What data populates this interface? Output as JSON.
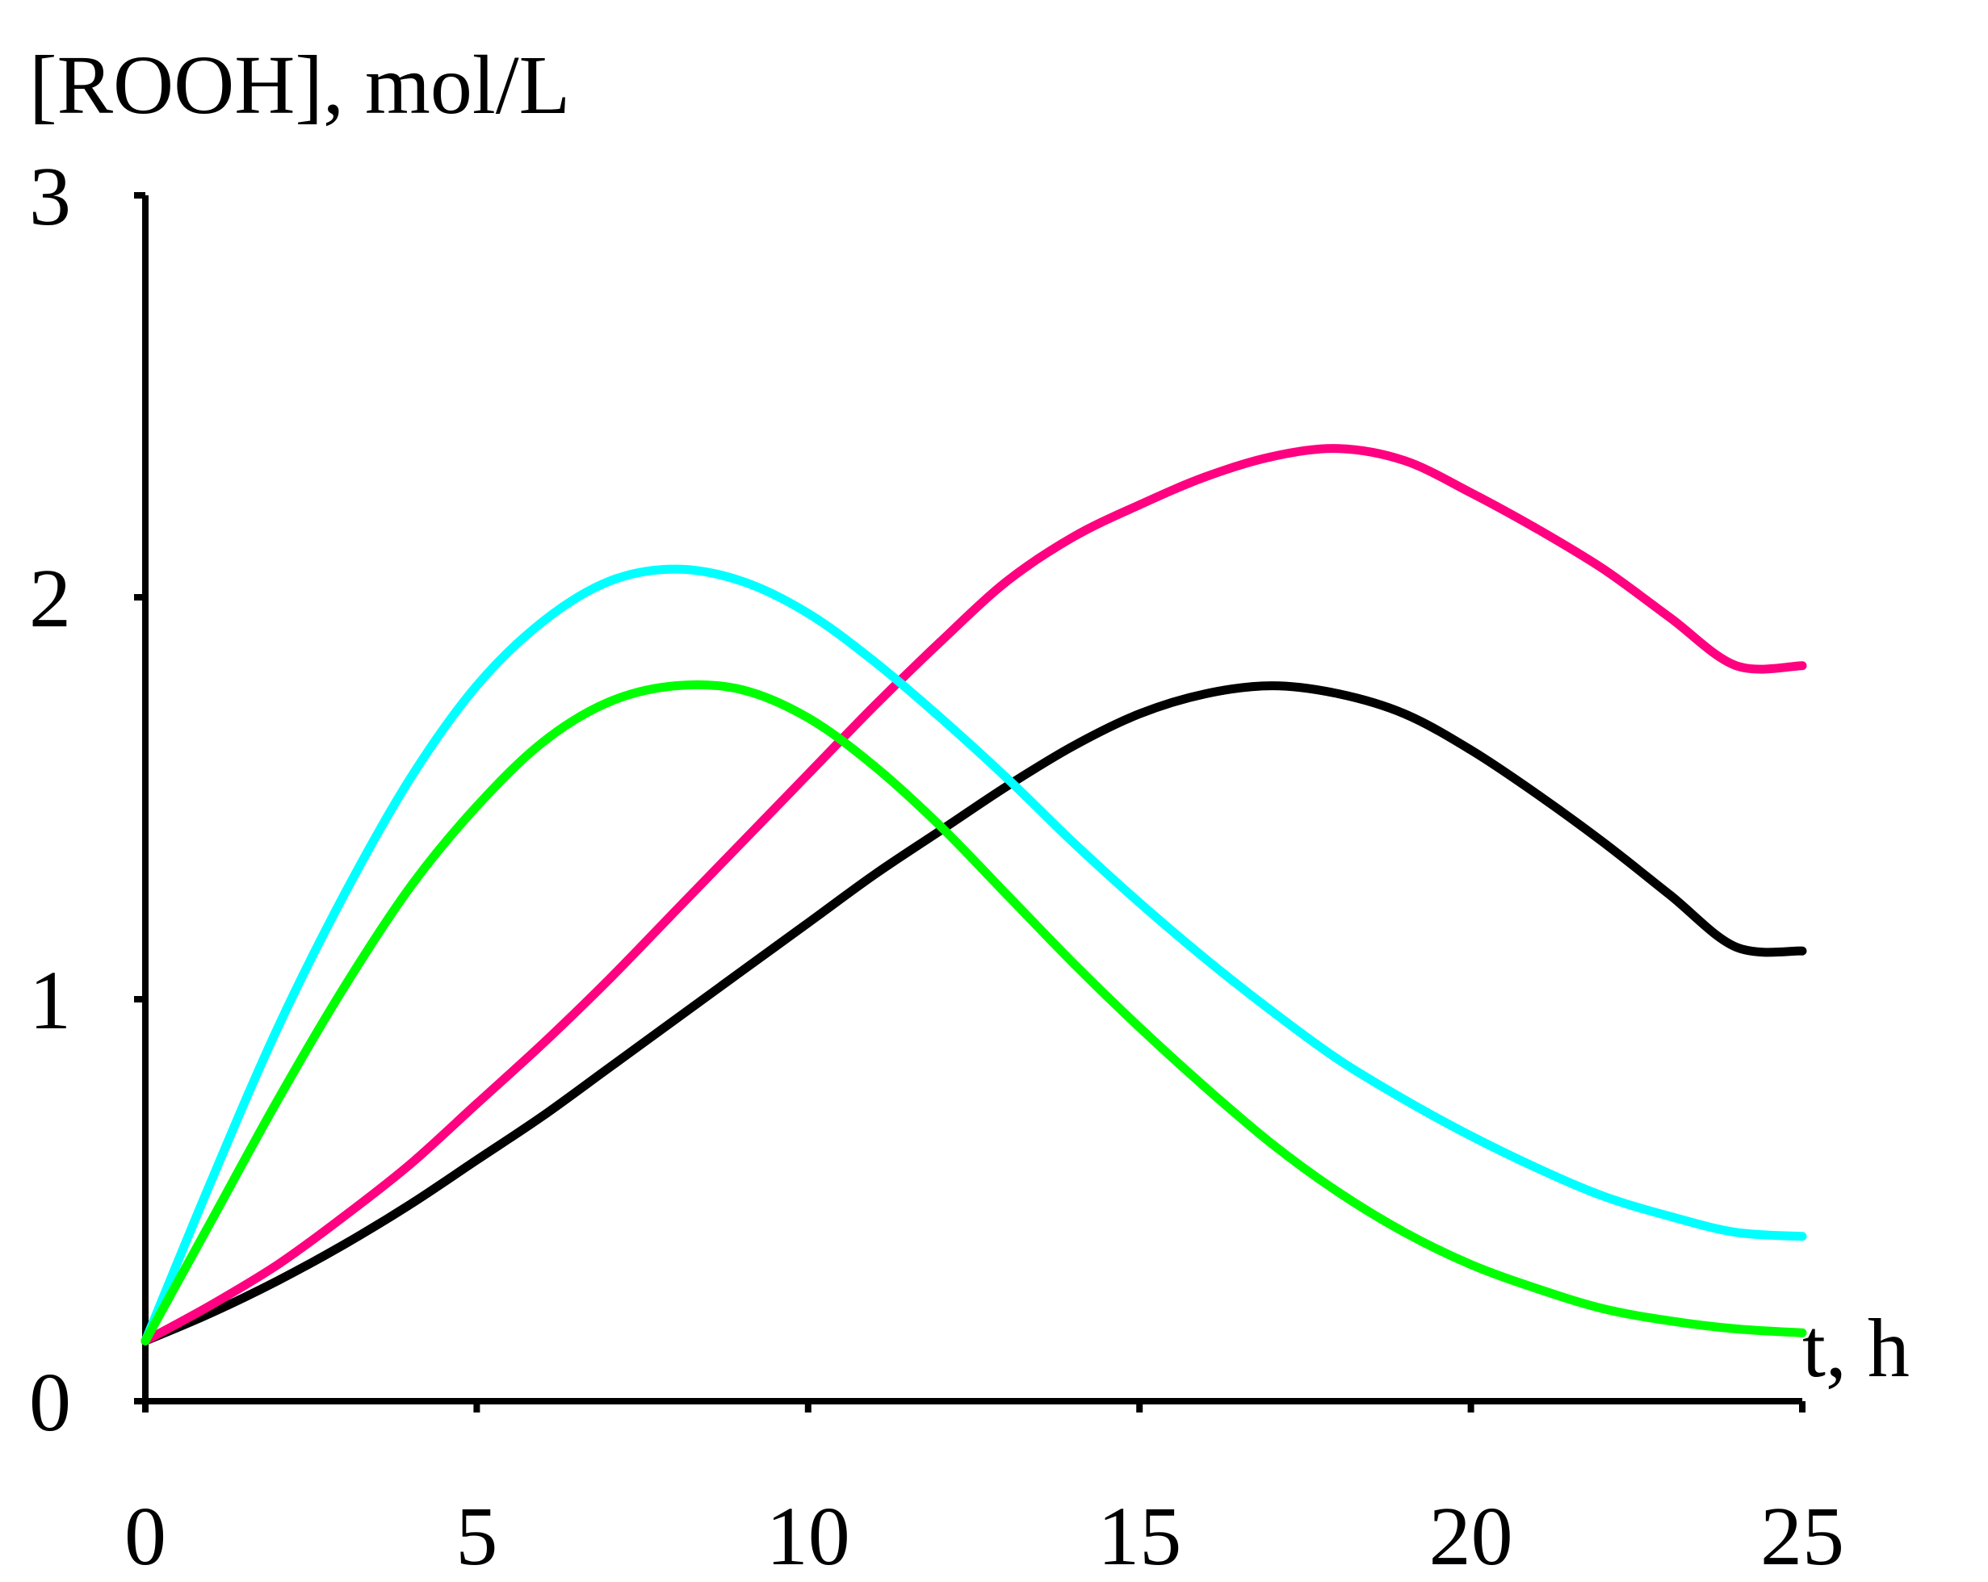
{
  "chart_data": {
    "type": "line",
    "title": "",
    "ylabel": "[ROOH], mol/L",
    "xlabel": "t, h",
    "xlim": [
      0,
      25
    ],
    "ylim": [
      0,
      3
    ],
    "xticks": [
      0,
      5,
      10,
      15,
      20,
      25
    ],
    "yticks": [
      0,
      1,
      2,
      3
    ],
    "grid": false,
    "legend": "none",
    "series": [
      {
        "name": "black",
        "color": "#000000",
        "x": [
          0,
          1,
          2,
          3,
          4,
          5,
          6,
          7,
          8,
          9,
          10,
          11,
          12,
          13,
          14,
          15,
          16,
          17,
          18,
          19,
          20,
          21,
          22,
          23,
          24,
          25
        ],
        "y": [
          0.15,
          0.22,
          0.3,
          0.39,
          0.49,
          0.6,
          0.71,
          0.83,
          0.95,
          1.07,
          1.19,
          1.31,
          1.42,
          1.53,
          1.63,
          1.71,
          1.76,
          1.78,
          1.76,
          1.71,
          1.62,
          1.51,
          1.39,
          1.26,
          1.13,
          1.12
        ]
      },
      {
        "name": "magenta",
        "color": "#ff0080",
        "x": [
          0,
          1,
          2,
          3,
          4,
          5,
          6,
          7,
          8,
          9,
          10,
          11,
          12,
          13,
          14,
          15,
          16,
          17,
          18,
          19,
          20,
          21,
          22,
          23,
          24,
          25
        ],
        "y": [
          0.15,
          0.24,
          0.34,
          0.46,
          0.59,
          0.74,
          0.89,
          1.05,
          1.22,
          1.39,
          1.56,
          1.73,
          1.89,
          2.04,
          2.15,
          2.23,
          2.3,
          2.35,
          2.37,
          2.34,
          2.26,
          2.17,
          2.07,
          1.95,
          1.83,
          1.83
        ]
      },
      {
        "name": "cyan",
        "color": "#00ffff",
        "x": [
          0,
          1,
          2,
          3,
          4,
          5,
          6,
          7,
          8,
          9,
          10,
          11,
          12,
          13,
          14,
          15,
          16,
          17,
          18,
          19,
          20,
          21,
          22,
          23,
          24,
          25
        ],
        "y": [
          0.15,
          0.55,
          0.93,
          1.26,
          1.55,
          1.78,
          1.94,
          2.04,
          2.07,
          2.04,
          1.96,
          1.84,
          1.7,
          1.55,
          1.39,
          1.24,
          1.1,
          0.97,
          0.85,
          0.75,
          0.66,
          0.58,
          0.51,
          0.46,
          0.42,
          0.41
        ]
      },
      {
        "name": "green",
        "color": "#00ff00",
        "x": [
          0,
          1,
          2,
          3,
          4,
          5,
          6,
          7,
          8,
          9,
          10,
          11,
          12,
          13,
          14,
          15,
          16,
          17,
          18,
          19,
          20,
          21,
          22,
          23,
          24,
          25
        ],
        "y": [
          0.15,
          0.45,
          0.75,
          1.03,
          1.28,
          1.48,
          1.64,
          1.74,
          1.78,
          1.77,
          1.7,
          1.58,
          1.43,
          1.26,
          1.09,
          0.93,
          0.78,
          0.64,
          0.52,
          0.42,
          0.34,
          0.28,
          0.23,
          0.2,
          0.18,
          0.17
        ]
      }
    ]
  }
}
